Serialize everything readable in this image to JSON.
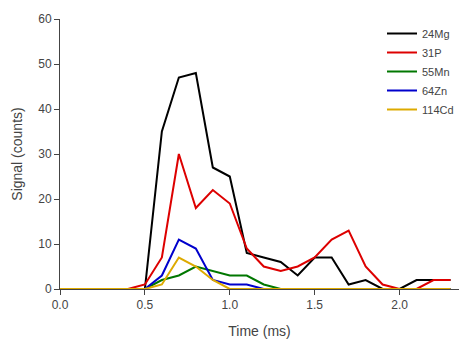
{
  "chart_data": {
    "type": "line",
    "xlabel": "Time (ms)",
    "ylabel": "Signal (counts)",
    "xlim": [
      0.0,
      2.35
    ],
    "ylim": [
      0,
      60
    ],
    "xticks": [
      {
        "value": 0.0,
        "label": "0.0"
      },
      0.5,
      {
        "value": 1.0,
        "label": "1.0"
      },
      1.5,
      {
        "value": 2.0,
        "label": "2.0"
      }
    ],
    "yticks": [
      0,
      10,
      20,
      30,
      40,
      50,
      60
    ],
    "grid": false,
    "legend": "upper right",
    "series": [
      {
        "name": "24Mg",
        "color": "#000000",
        "x": [
          0.0,
          0.4,
          0.5,
          0.6,
          0.7,
          0.8,
          0.9,
          1.0,
          1.1,
          1.2,
          1.3,
          1.4,
          1.5,
          1.6,
          1.7,
          1.8,
          1.9,
          2.0,
          2.1,
          2.2,
          2.3
        ],
        "values": [
          0,
          0,
          0,
          35,
          47,
          48,
          27,
          25,
          8,
          7,
          6,
          3,
          7,
          7,
          1,
          2,
          0,
          0,
          2,
          2,
          2
        ]
      },
      {
        "name": "31P",
        "color": "#dd0000",
        "x": [
          0.0,
          0.4,
          0.5,
          0.6,
          0.7,
          0.8,
          0.9,
          1.0,
          1.1,
          1.2,
          1.3,
          1.4,
          1.5,
          1.6,
          1.7,
          1.8,
          1.9,
          2.0,
          2.1,
          2.2,
          2.3
        ],
        "values": [
          0,
          0,
          1,
          7,
          30,
          18,
          22,
          19,
          9,
          5,
          4,
          5,
          7,
          11,
          13,
          5,
          1,
          0,
          0,
          2,
          2
        ]
      },
      {
        "name": "55Mn",
        "color": "#007700",
        "x": [
          0.0,
          0.4,
          0.5,
          0.6,
          0.7,
          0.8,
          0.9,
          1.0,
          1.1,
          1.2,
          1.3,
          1.4,
          2.3
        ],
        "values": [
          0,
          0,
          0,
          2,
          3,
          5,
          4,
          3,
          3,
          1,
          0,
          0,
          0
        ]
      },
      {
        "name": "64Zn",
        "color": "#0000cc",
        "x": [
          0.0,
          0.4,
          0.5,
          0.6,
          0.7,
          0.8,
          0.9,
          1.0,
          1.1,
          1.2,
          2.3
        ],
        "values": [
          0,
          0,
          0,
          3,
          11,
          9,
          2,
          1,
          1,
          0,
          0
        ]
      },
      {
        "name": "114Cd",
        "color": "#ddaa00",
        "x": [
          0.0,
          0.4,
          0.5,
          0.6,
          0.7,
          0.8,
          0.9,
          1.0,
          2.3
        ],
        "values": [
          0,
          0,
          0,
          1,
          7,
          5,
          2,
          0,
          0
        ]
      }
    ]
  }
}
